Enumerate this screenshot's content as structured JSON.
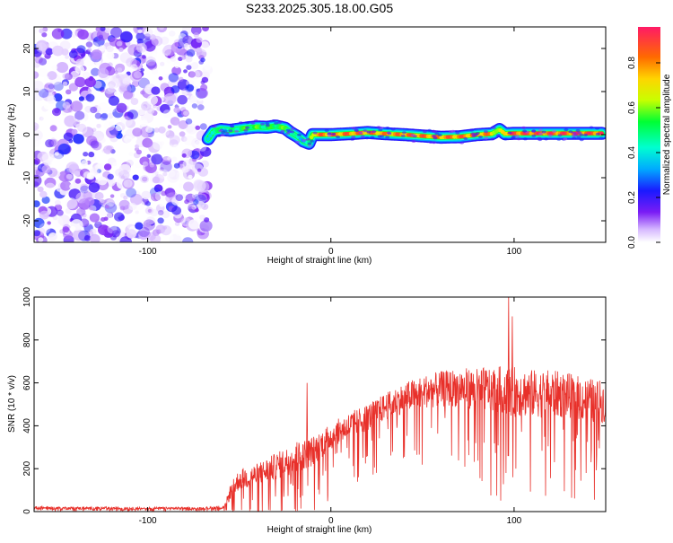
{
  "title": "S233.2025.305.18.00.G05",
  "chart_data": [
    {
      "type": "heatmap",
      "xlabel": "Height of straight line (km)",
      "ylabel": "Frequency (Hz)",
      "xlim": [
        -162,
        150
      ],
      "ylim": [
        -25,
        25
      ],
      "xticks": [
        -100,
        0,
        100
      ],
      "yticks": [
        -20,
        -10,
        0,
        10,
        20
      ],
      "colorbar": {
        "label": "Normalized spectral amplitude",
        "ticks": [
          0.0,
          0.2,
          0.4,
          0.6,
          0.8
        ],
        "range": [
          0,
          0.96
        ]
      },
      "noise_region": {
        "x_start": -162,
        "x_end": -67,
        "description_values": [
          0.0,
          0.25
        ]
      },
      "ridge": {
        "x": [
          -67,
          -64,
          -60,
          -55,
          -50,
          -45,
          -40,
          -35,
          -30,
          -25,
          -22,
          -18,
          -15,
          -12,
          -10,
          -5,
          0,
          10,
          20,
          30,
          40,
          50,
          60,
          70,
          80,
          88,
          92,
          95,
          100,
          110,
          120,
          130,
          140,
          148
        ],
        "y": [
          -1.0,
          0.8,
          1.2,
          1.0,
          1.3,
          1.6,
          1.8,
          1.7,
          2.0,
          1.5,
          0.5,
          -0.5,
          -1.5,
          -2.0,
          0.0,
          0.0,
          0.0,
          0.2,
          0.5,
          0.2,
          0.0,
          -0.3,
          -0.6,
          -0.5,
          0.0,
          0.2,
          1.2,
          0.2,
          0.3,
          0.3,
          0.3,
          0.3,
          0.3,
          0.3
        ],
        "amplitude": [
          0.4,
          0.55,
          0.5,
          0.5,
          0.55,
          0.6,
          0.6,
          0.55,
          0.6,
          0.6,
          0.5,
          0.45,
          0.4,
          0.45,
          0.8,
          0.9,
          0.9,
          0.9,
          0.9,
          0.85,
          0.9,
          0.9,
          0.9,
          0.9,
          0.9,
          0.85,
          0.6,
          0.9,
          0.95,
          0.95,
          0.95,
          0.95,
          0.95,
          0.95
        ]
      }
    },
    {
      "type": "line",
      "xlabel": "Height of straight line (km)",
      "ylabel": "SNR (10 * v/v)",
      "xlim": [
        -162,
        150
      ],
      "ylim": [
        0,
        1000
      ],
      "xticks": [
        -100,
        0,
        100
      ],
      "yticks": [
        0,
        200,
        400,
        600,
        800,
        1000
      ],
      "color": "#e8302a",
      "envelope": {
        "x": [
          -162,
          -150,
          -100,
          -70,
          -58,
          -55,
          -50,
          -40,
          -30,
          -20,
          -10,
          0,
          10,
          20,
          30,
          40,
          50,
          60,
          70,
          80,
          90,
          100,
          110,
          120,
          130,
          140,
          150
        ],
        "mean": [
          18,
          16,
          15,
          15,
          20,
          90,
          150,
          170,
          210,
          250,
          280,
          350,
          400,
          440,
          490,
          530,
          560,
          570,
          580,
          570,
          570,
          560,
          550,
          550,
          540,
          520,
          510
        ],
        "spread": [
          12,
          10,
          9,
          9,
          14,
          50,
          70,
          80,
          90,
          100,
          100,
          90,
          90,
          90,
          90,
          100,
          110,
          120,
          130,
          140,
          160,
          170,
          160,
          160,
          150,
          150,
          140
        ]
      },
      "spikes": [
        {
          "x": -13,
          "y": 600
        },
        {
          "x": 97,
          "y": 1000
        },
        {
          "x": 99,
          "y": 910
        }
      ]
    }
  ]
}
